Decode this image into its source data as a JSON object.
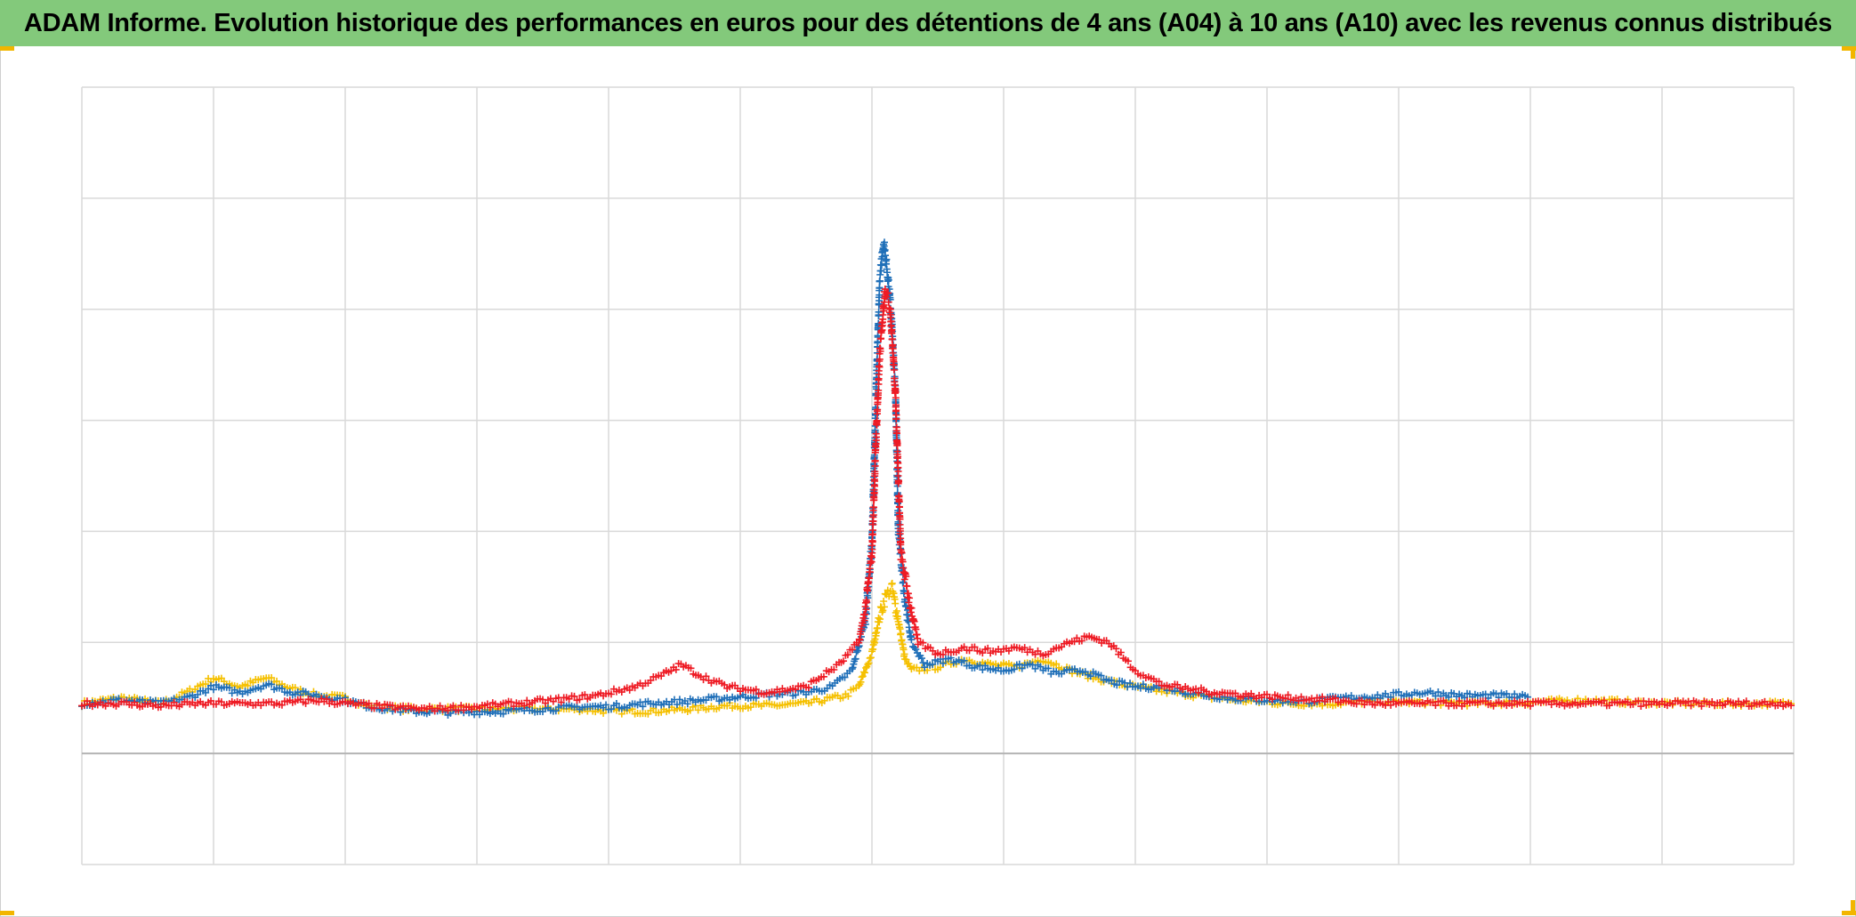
{
  "title": "ADAM Informe. Evolution historique des performances en euros pour des détentions de 4 ans (A04) à 10 ans (A10) avec les revenus connus distribués",
  "colors": {
    "title_bg": "#83c97b",
    "corner_accent": "#f2b600",
    "grid": "#d9d9d9",
    "baseline": "#b4b4b4"
  },
  "chart_data": {
    "type": "scatter",
    "marker": "plus",
    "grid": true,
    "legend": "none",
    "x_range": [
      0,
      13
    ],
    "y_range": [
      -1,
      6
    ],
    "baseline_y": 0,
    "series": [
      {
        "color": "#f5c000",
        "points": [
          [
            0,
            0.45
          ],
          [
            0.3,
            0.5
          ],
          [
            0.6,
            0.45
          ],
          [
            0.8,
            0.55
          ],
          [
            1.0,
            0.68
          ],
          [
            1.2,
            0.6
          ],
          [
            1.4,
            0.68
          ],
          [
            1.6,
            0.58
          ],
          [
            1.8,
            0.52
          ],
          [
            2.0,
            0.5
          ],
          [
            2.2,
            0.42
          ],
          [
            2.5,
            0.4
          ],
          [
            2.8,
            0.4
          ],
          [
            3.2,
            0.4
          ],
          [
            3.5,
            0.4
          ],
          [
            3.8,
            0.4
          ],
          [
            4.0,
            0.38
          ],
          [
            4.3,
            0.38
          ],
          [
            4.6,
            0.4
          ],
          [
            4.9,
            0.43
          ],
          [
            5.2,
            0.43
          ],
          [
            5.5,
            0.45
          ],
          [
            5.8,
            0.52
          ],
          [
            5.9,
            0.6
          ],
          [
            6.0,
            0.9
          ],
          [
            6.05,
            1.2
          ],
          [
            6.1,
            1.4
          ],
          [
            6.15,
            1.5
          ],
          [
            6.2,
            1.2
          ],
          [
            6.25,
            0.85
          ],
          [
            6.3,
            0.75
          ],
          [
            6.5,
            0.78
          ],
          [
            6.7,
            0.85
          ],
          [
            6.9,
            0.8
          ],
          [
            7.1,
            0.78
          ],
          [
            7.3,
            0.85
          ],
          [
            7.5,
            0.75
          ],
          [
            7.7,
            0.68
          ],
          [
            7.9,
            0.62
          ],
          [
            8.1,
            0.58
          ],
          [
            8.3,
            0.55
          ],
          [
            8.6,
            0.5
          ],
          [
            8.9,
            0.47
          ],
          [
            9.2,
            0.45
          ],
          [
            9.5,
            0.45
          ],
          [
            9.8,
            0.47
          ],
          [
            10.2,
            0.46
          ],
          [
            10.6,
            0.45
          ],
          [
            11.0,
            0.46
          ],
          [
            11.4,
            0.48
          ],
          [
            11.8,
            0.46
          ],
          [
            12.2,
            0.45
          ],
          [
            12.6,
            0.45
          ],
          [
            13,
            0.45
          ]
        ]
      },
      {
        "color": "#1f6fb8",
        "points": [
          [
            0,
            0.45
          ],
          [
            0.3,
            0.48
          ],
          [
            0.6,
            0.45
          ],
          [
            0.8,
            0.5
          ],
          [
            1.0,
            0.6
          ],
          [
            1.2,
            0.55
          ],
          [
            1.4,
            0.62
          ],
          [
            1.6,
            0.55
          ],
          [
            1.8,
            0.52
          ],
          [
            2.0,
            0.48
          ],
          [
            2.2,
            0.42
          ],
          [
            2.5,
            0.38
          ],
          [
            2.8,
            0.37
          ],
          [
            3.2,
            0.38
          ],
          [
            3.5,
            0.4
          ],
          [
            3.8,
            0.42
          ],
          [
            4.0,
            0.42
          ],
          [
            4.3,
            0.45
          ],
          [
            4.6,
            0.47
          ],
          [
            4.9,
            0.5
          ],
          [
            5.2,
            0.53
          ],
          [
            5.5,
            0.55
          ],
          [
            5.7,
            0.6
          ],
          [
            5.85,
            0.75
          ],
          [
            5.95,
            1.2
          ],
          [
            6.0,
            1.9
          ],
          [
            6.03,
            3.2
          ],
          [
            6.06,
            4.3
          ],
          [
            6.09,
            4.6
          ],
          [
            6.12,
            4.3
          ],
          [
            6.15,
            3.9
          ],
          [
            6.18,
            3.2
          ],
          [
            6.2,
            2.0
          ],
          [
            6.25,
            1.4
          ],
          [
            6.3,
            1.0
          ],
          [
            6.4,
            0.8
          ],
          [
            6.6,
            0.85
          ],
          [
            6.8,
            0.78
          ],
          [
            7.0,
            0.75
          ],
          [
            7.2,
            0.8
          ],
          [
            7.4,
            0.72
          ],
          [
            7.6,
            0.75
          ],
          [
            7.8,
            0.65
          ],
          [
            8.0,
            0.6
          ],
          [
            8.2,
            0.6
          ],
          [
            8.4,
            0.55
          ],
          [
            8.7,
            0.5
          ],
          [
            9.0,
            0.48
          ],
          [
            9.3,
            0.47
          ],
          [
            9.6,
            0.5
          ],
          [
            9.9,
            0.52
          ],
          [
            10.2,
            0.55
          ],
          [
            10.5,
            0.52
          ],
          [
            10.8,
            0.52
          ],
          [
            11.0,
            0.5
          ]
        ]
      },
      {
        "color": "#ee1b24",
        "points": [
          [
            0,
            0.45
          ],
          [
            0.3,
            0.45
          ],
          [
            0.6,
            0.43
          ],
          [
            0.9,
            0.45
          ],
          [
            1.2,
            0.45
          ],
          [
            1.5,
            0.45
          ],
          [
            1.8,
            0.48
          ],
          [
            2.0,
            0.45
          ],
          [
            2.3,
            0.42
          ],
          [
            2.6,
            0.4
          ],
          [
            3.0,
            0.42
          ],
          [
            3.3,
            0.45
          ],
          [
            3.6,
            0.48
          ],
          [
            3.9,
            0.52
          ],
          [
            4.2,
            0.6
          ],
          [
            4.4,
            0.7
          ],
          [
            4.55,
            0.8
          ],
          [
            4.7,
            0.7
          ],
          [
            4.9,
            0.6
          ],
          [
            5.2,
            0.55
          ],
          [
            5.5,
            0.6
          ],
          [
            5.75,
            0.8
          ],
          [
            5.9,
            1.0
          ],
          [
            5.95,
            1.3
          ],
          [
            6.0,
            1.8
          ],
          [
            6.03,
            2.8
          ],
          [
            6.06,
            3.6
          ],
          [
            6.1,
            4.2
          ],
          [
            6.14,
            4.0
          ],
          [
            6.18,
            3.2
          ],
          [
            6.22,
            1.8
          ],
          [
            6.28,
            1.4
          ],
          [
            6.35,
            1.0
          ],
          [
            6.5,
            0.9
          ],
          [
            6.7,
            0.95
          ],
          [
            6.9,
            0.92
          ],
          [
            7.1,
            0.95
          ],
          [
            7.3,
            0.9
          ],
          [
            7.5,
            1.0
          ],
          [
            7.65,
            1.05
          ],
          [
            7.8,
            1.0
          ],
          [
            8.0,
            0.75
          ],
          [
            8.2,
            0.62
          ],
          [
            8.4,
            0.58
          ],
          [
            8.6,
            0.55
          ],
          [
            8.9,
            0.52
          ],
          [
            9.2,
            0.5
          ],
          [
            9.5,
            0.48
          ],
          [
            9.8,
            0.45
          ],
          [
            10.2,
            0.45
          ],
          [
            10.6,
            0.45
          ],
          [
            11.0,
            0.45
          ],
          [
            11.5,
            0.45
          ],
          [
            12.0,
            0.45
          ],
          [
            12.5,
            0.45
          ],
          [
            13,
            0.45
          ]
        ]
      }
    ]
  }
}
